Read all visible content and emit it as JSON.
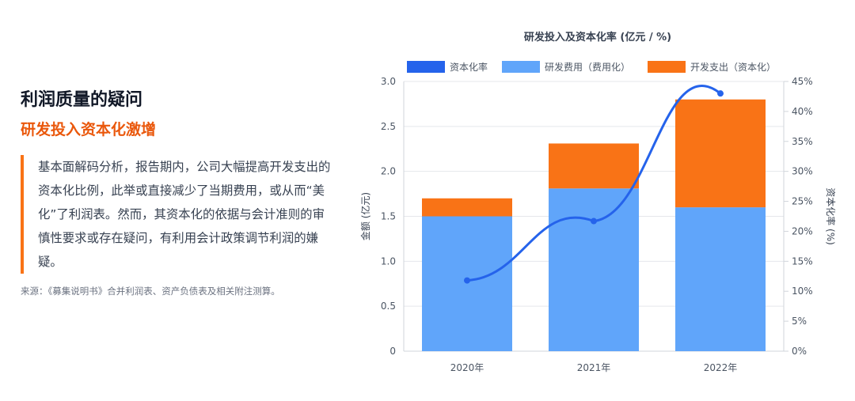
{
  "left": {
    "title": "利润质量的疑问",
    "subtitle": "研发投入资本化激增",
    "body": "基本面解码分析，报告期内，公司大幅提高开发支出的资本化比例，此举或直接减少了当期费用，或从而“美化”了利润表。然而，其资本化的依据与会计准则的审慎性要求或存在疑问，有利用会计政策调节利润的嫌疑。",
    "source": "来源：《募集说明书》合并利润表、资产负债表及相关附注测算。"
  },
  "chart_data": {
    "type": "bar",
    "title": "研发投入及资本化率 (亿元 / %)",
    "categories": [
      "2020年",
      "2021年",
      "2022年"
    ],
    "series": [
      {
        "name": "研发费用（费用化）",
        "kind": "stacked-bar",
        "color": "#60a5fa",
        "values": [
          1.5,
          1.81,
          1.6
        ]
      },
      {
        "name": "开发支出（资本化）",
        "kind": "stacked-bar",
        "color": "#f97316",
        "values": [
          0.2,
          0.5,
          1.2
        ]
      },
      {
        "name": "资本化率",
        "kind": "line",
        "axis": "right",
        "color": "#2563eb",
        "values": [
          11.8,
          21.7,
          43.0
        ]
      }
    ],
    "legend_order": [
      "资本化率",
      "研发费用（费用化）",
      "开发支出（资本化）"
    ],
    "legend_position": "top",
    "ylabel_left": "金额 (亿元)",
    "ylabel_right": "资本化率 (%)",
    "ylim_left": [
      0,
      3.0
    ],
    "ylim_right": [
      0,
      45
    ],
    "yticks_left": [
      "0",
      "0.5",
      "1.0",
      "1.5",
      "2.0",
      "2.5",
      "3.0"
    ],
    "yticks_right": [
      "0%",
      "5%",
      "10%",
      "15%",
      "20%",
      "25%",
      "30%",
      "35%",
      "40%",
      "45%"
    ],
    "grid": true
  }
}
